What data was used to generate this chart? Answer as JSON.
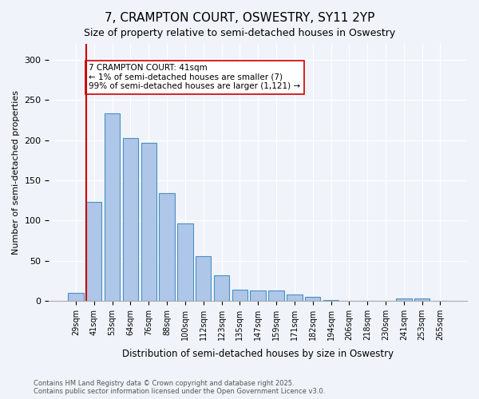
{
  "title_line1": "7, CRAMPTON COURT, OSWESTRY, SY11 2YP",
  "title_line2": "Size of property relative to semi-detached houses in Oswestry",
  "xlabel": "Distribution of semi-detached houses by size in Oswestry",
  "ylabel": "Number of semi-detached properties",
  "categories": [
    "29sqm",
    "41sqm",
    "53sqm",
    "64sqm",
    "76sqm",
    "88sqm",
    "100sqm",
    "112sqm",
    "123sqm",
    "135sqm",
    "147sqm",
    "159sqm",
    "171sqm",
    "182sqm",
    "194sqm",
    "206sqm",
    "218sqm",
    "230sqm",
    "241sqm",
    "253sqm",
    "265sqm"
  ],
  "values": [
    10,
    123,
    233,
    203,
    197,
    134,
    96,
    55,
    32,
    14,
    13,
    13,
    8,
    5,
    1,
    0,
    0,
    0,
    3,
    3,
    0
  ],
  "bar_color": "#aec6e8",
  "bar_edge_color": "#4a90c4",
  "highlight_index": 1,
  "highlight_line_color": "#cc0000",
  "annotation_text": "7 CRAMPTON COURT: 41sqm\n← 1% of semi-detached houses are smaller (7)\n99% of semi-detached houses are larger (1,121) →",
  "annotation_box_color": "#ffffff",
  "annotation_box_edge_color": "#cc0000",
  "ylim": [
    0,
    320
  ],
  "yticks": [
    0,
    50,
    100,
    150,
    200,
    250,
    300
  ],
  "footer_text": "Contains HM Land Registry data © Crown copyright and database right 2025.\nContains public sector information licensed under the Open Government Licence v3.0.",
  "background_color": "#f0f4fa",
  "grid_color": "#ffffff",
  "font_family": "DejaVu Sans"
}
